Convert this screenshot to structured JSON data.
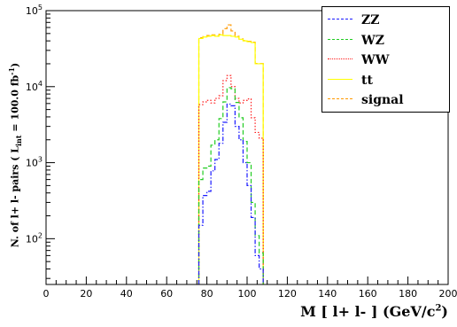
{
  "chart_data": {
    "type": "line",
    "xlabel": "M [ l+ l- ] (GeV/c",
    "xlabel_sup": "2",
    "xlabel_end": ")",
    "ylabel": "N. of l+ l- pairs  ( L",
    "ylabel_sub": "int",
    "ylabel_mid": " = 100.0 fb",
    "ylabel_sup": "-1",
    "ylabel_end": ")",
    "xlim": [
      0,
      200
    ],
    "ylim": [
      25,
      100000
    ],
    "yscale": "log",
    "x_ticks": [
      "0",
      "20",
      "40",
      "60",
      "80",
      "100",
      "120",
      "140",
      "160",
      "180",
      "200"
    ],
    "y_ticks": [
      {
        "value": 100,
        "base": "10",
        "exp": "2"
      },
      {
        "value": 1000,
        "base": "10",
        "exp": "3"
      },
      {
        "value": 10000,
        "base": "10",
        "exp": "4"
      },
      {
        "value": 100000,
        "base": "10",
        "exp": "5"
      }
    ],
    "grid": false,
    "legend_position": "top-right",
    "bin_edges": [
      76,
      78,
      80,
      82,
      84,
      86,
      88,
      90,
      92,
      94,
      96,
      98,
      100,
      102,
      104,
      106,
      108
    ],
    "series": [
      {
        "name": "ZZ",
        "color": "#1a1aff",
        "dash": "dashdot",
        "values": [
          150,
          370,
          420,
          780,
          1100,
          1800,
          3400,
          5900,
          5600,
          3000,
          2000,
          1000,
          500,
          190,
          60,
          40
        ]
      },
      {
        "name": "WZ",
        "color": "#22cc22",
        "dash": "dash",
        "values": [
          600,
          850,
          900,
          1700,
          2000,
          3800,
          6300,
          9700,
          9400,
          6200,
          3900,
          1900,
          1000,
          300,
          110,
          65
        ]
      },
      {
        "name": "WW",
        "color": "#ff1a1a",
        "dash": "dot",
        "values": [
          5800,
          6300,
          6600,
          6100,
          7000,
          7600,
          12000,
          14000,
          10000,
          7000,
          6100,
          6600,
          6900,
          3900,
          2500,
          2100
        ]
      },
      {
        "name": "tt",
        "color": "#ffff00",
        "dash": "solid",
        "values": [
          43000,
          45000,
          46000,
          47000,
          46000,
          48000,
          47000,
          47000,
          46000,
          45000,
          42000,
          40000,
          39000,
          38000,
          20000,
          20000
        ]
      },
      {
        "name": "signal",
        "color": "#ff9900",
        "dash": "dash",
        "values": [
          44000,
          45500,
          47000,
          48000,
          46500,
          49000,
          58000,
          65000,
          54000,
          46000,
          42500,
          40500,
          39500,
          38500,
          20200,
          20100
        ]
      }
    ]
  }
}
